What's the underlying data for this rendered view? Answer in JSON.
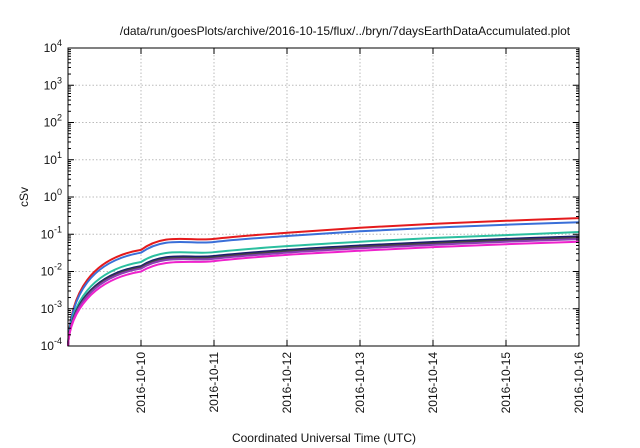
{
  "chart_data": {
    "type": "line",
    "title": "/data/run/goesPlots/archive/2016-10-15/flux/../bryn/7daysEarthDataAccumulated.plot",
    "xlabel": "Coordinated Universal Time (UTC)",
    "ylabel": "cSv",
    "y_scale": "log",
    "ylim": [
      0.0001,
      10000
    ],
    "xlim": [
      "2016-10-09",
      "2016-10-16"
    ],
    "x_ticks": [
      "2016-10-10",
      "2016-10-11",
      "2016-10-12",
      "2016-10-13",
      "2016-10-14",
      "2016-10-15",
      "2016-10-16"
    ],
    "y_ticks": [
      {
        "base": "10",
        "exp": "-4",
        "value": 0.0001
      },
      {
        "base": "10",
        "exp": "-3",
        "value": 0.001
      },
      {
        "base": "10",
        "exp": "-2",
        "value": 0.01
      },
      {
        "base": "10",
        "exp": "-1",
        "value": 0.1
      },
      {
        "base": "10",
        "exp": "0",
        "value": 1
      },
      {
        "base": "10",
        "exp": "1",
        "value": 10
      },
      {
        "base": "10",
        "exp": "2",
        "value": 100
      },
      {
        "base": "10",
        "exp": "3",
        "value": 1000
      },
      {
        "base": "10",
        "exp": "4",
        "value": 10000
      }
    ],
    "grid": true,
    "legend": false,
    "x": [
      "2016-10-09",
      "2016-10-10",
      "2016-10-11",
      "2016-10-12",
      "2016-10-13",
      "2016-10-14",
      "2016-10-15",
      "2016-10-16"
    ],
    "series": [
      {
        "color": "#e41a1c",
        "values": [
          0.0001,
          0.038,
          0.075,
          0.11,
          0.15,
          0.19,
          0.23,
          0.27
        ]
      },
      {
        "color": "#3a6fd8",
        "values": [
          0.0001,
          0.032,
          0.062,
          0.09,
          0.12,
          0.15,
          0.18,
          0.21
        ]
      },
      {
        "color": "#2bbf9f",
        "values": [
          0.0001,
          0.018,
          0.033,
          0.048,
          0.063,
          0.079,
          0.095,
          0.115
        ]
      },
      {
        "color": "#1a1a6e",
        "values": [
          0.0001,
          0.014,
          0.026,
          0.038,
          0.05,
          0.062,
          0.075,
          0.088
        ]
      },
      {
        "color": "#444444",
        "values": [
          0.0001,
          0.013,
          0.024,
          0.035,
          0.046,
          0.057,
          0.069,
          0.081
        ]
      },
      {
        "color": "#8a3fb3",
        "values": [
          0.0001,
          0.012,
          0.022,
          0.032,
          0.042,
          0.052,
          0.063,
          0.074
        ]
      },
      {
        "color": "#ee22cc",
        "values": [
          0.0001,
          0.01,
          0.019,
          0.028,
          0.036,
          0.045,
          0.054,
          0.063
        ]
      }
    ]
  }
}
